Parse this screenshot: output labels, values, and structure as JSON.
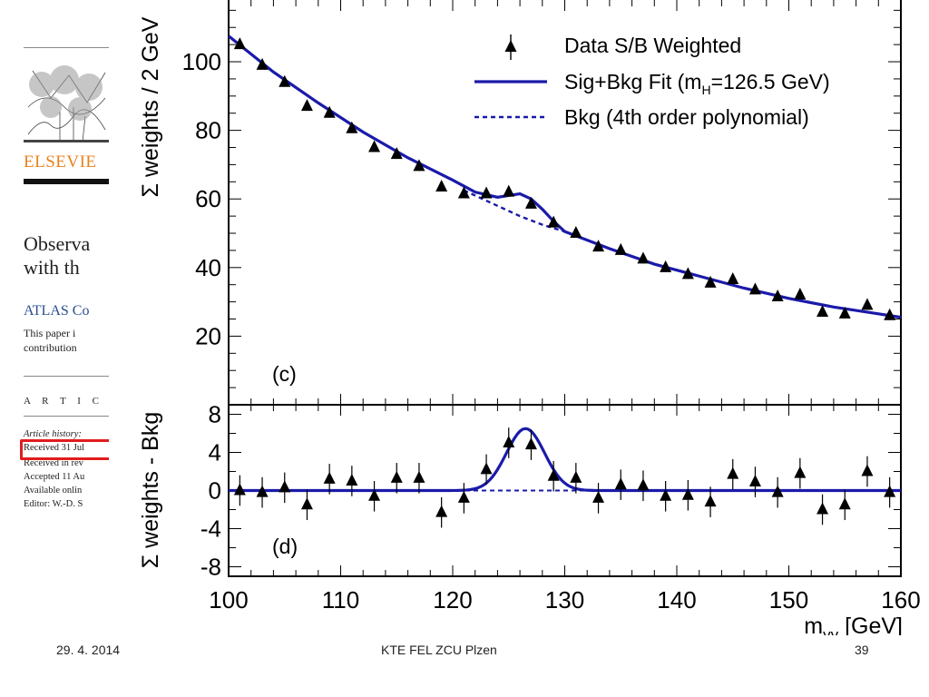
{
  "paper": {
    "publisher": "ELSEVIE",
    "title_line1": "Observa",
    "title_line2": "with th",
    "authors": "ATLAS Co",
    "note_line1": "This paper i",
    "note_line2": "contribution",
    "article_info": "A R T I C L",
    "history_label": "Article history:",
    "history": [
      "Received 31 Jul",
      "Received in rev",
      "Accepted 11 Au",
      "Available onlin",
      "Editor: W.-D. S"
    ]
  },
  "footer": {
    "date": "29. 4. 2014",
    "center": "KTE FEL ZCU Plzen",
    "page": "39"
  },
  "chart_data": [
    {
      "type": "scatter",
      "panel_label": "(c)",
      "ylabel": "Σ weights / 2 GeV",
      "xlim": [
        100,
        160
      ],
      "ylim": [
        0,
        118
      ],
      "yticks": [
        20,
        40,
        60,
        80,
        100
      ],
      "legend_position": "top-right",
      "legend": [
        {
          "label": "Data S/B Weighted",
          "style": "marker"
        },
        {
          "label": "Sig+Bkg Fit  (m",
          "sub": "H",
          "suffix": "=126.5 GeV)",
          "style": "solid"
        },
        {
          "label": "Bkg (4th order polynomial)",
          "style": "dashed"
        }
      ],
      "series": [
        {
          "name": "Data S/B Weighted",
          "kind": "points",
          "x": [
            101,
            103,
            105,
            107,
            109,
            111,
            113,
            115,
            117,
            119,
            121,
            123,
            125,
            127,
            129,
            131,
            133,
            135,
            137,
            139,
            141,
            143,
            145,
            147,
            149,
            151,
            153,
            155,
            157,
            159
          ],
          "y": [
            105,
            99,
            94,
            87,
            85,
            80.5,
            75,
            73,
            69.5,
            63.5,
            61.5,
            61.5,
            62,
            58.5,
            53,
            50,
            46,
            45,
            42.5,
            40,
            38,
            35.5,
            36.5,
            33.5,
            31.5,
            32,
            27,
            26.5,
            29,
            26
          ],
          "err": [
            1.3,
            1.3,
            1.3,
            1.3,
            1.3,
            1.3,
            1.3,
            1.3,
            1.3,
            1.3,
            1.3,
            1.3,
            1.3,
            1.3,
            1.3,
            1.3,
            1.3,
            1.3,
            1.3,
            1.3,
            1.3,
            1.3,
            1.3,
            1.3,
            1.3,
            1.3,
            1.3,
            1.3,
            1.3,
            1.3
          ]
        },
        {
          "name": "Sig+Bkg Fit",
          "kind": "line",
          "x": [
            100,
            104,
            108,
            112,
            116,
            120,
            122,
            124,
            125,
            126,
            127,
            128,
            129,
            130,
            134,
            138,
            142,
            146,
            150,
            154,
            158,
            160
          ],
          "y": [
            107.5,
            97,
            88,
            79.5,
            72,
            65.5,
            62,
            60.5,
            61,
            61.5,
            60,
            57,
            53.5,
            50.5,
            45.5,
            41,
            37.5,
            34,
            31,
            28.5,
            26.5,
            25.5
          ]
        },
        {
          "name": "Bkg (4th order polynomial)",
          "kind": "dashed",
          "x": [
            121,
            122,
            124,
            126,
            128,
            130
          ],
          "y": [
            62.5,
            61,
            58,
            55,
            52.5,
            50.5
          ]
        }
      ],
      "color": "#1a1aaa"
    },
    {
      "type": "scatter",
      "panel_label": "(d)",
      "ylabel": "Σ weights - Bkg",
      "xlabel": "m",
      "xlabel_sub": "γγ",
      "xlabel_suffix": " [GeV]",
      "xlim": [
        100,
        160
      ],
      "ylim": [
        -9,
        9
      ],
      "xticks": [
        100,
        110,
        120,
        130,
        140,
        150,
        160
      ],
      "yticks": [
        -8,
        -4,
        0,
        4,
        8
      ],
      "minor_yticks": [
        -6,
        -2,
        2,
        6
      ],
      "series": [
        {
          "name": "residual data",
          "kind": "points",
          "x": [
            101,
            103,
            105,
            107,
            109,
            111,
            113,
            115,
            117,
            119,
            121,
            123,
            125,
            127,
            129,
            131,
            133,
            135,
            137,
            139,
            141,
            143,
            145,
            147,
            149,
            151,
            153,
            155,
            157,
            159
          ],
          "y": [
            0,
            -0.2,
            0.3,
            -1.5,
            1.2,
            1,
            -0.6,
            1.3,
            1.3,
            -2.3,
            -0.8,
            2.2,
            5,
            4.8,
            1.5,
            1.3,
            -0.8,
            0.6,
            0.5,
            -0.6,
            -0.5,
            -1.2,
            1.7,
            0.9,
            -0.2,
            1.8,
            -2,
            -1.5,
            2,
            -0.2
          ],
          "err": [
            1.6,
            1.6,
            1.6,
            1.6,
            1.6,
            1.6,
            1.6,
            1.6,
            1.6,
            1.6,
            1.6,
            1.6,
            1.6,
            1.6,
            1.6,
            1.6,
            1.6,
            1.6,
            1.6,
            1.6,
            1.6,
            1.6,
            1.6,
            1.6,
            1.6,
            1.6,
            1.6,
            1.6,
            1.6,
            1.6
          ]
        },
        {
          "name": "signal fit",
          "kind": "gaussian",
          "mean": 126.5,
          "amplitude": 6.5,
          "sigma": 1.7,
          "xrange": [
            100,
            160
          ]
        },
        {
          "name": "background",
          "kind": "dashed",
          "x": [
            100,
            160
          ],
          "y": [
            0,
            0
          ]
        }
      ],
      "color": "#1a1aaa"
    }
  ]
}
